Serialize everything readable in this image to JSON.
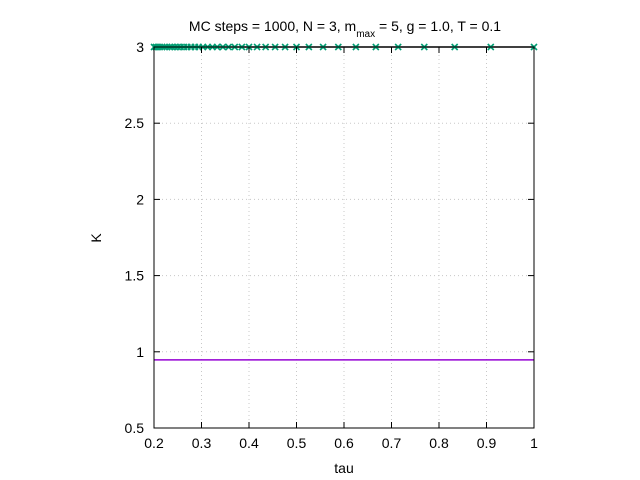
{
  "chart_data": {
    "type": "scatter",
    "title": {
      "prefix": "MC steps = 1000, N = 3, m",
      "subscript": "max",
      "suffix": " = 5, g = 1.0, T = 0.1"
    },
    "xlabel": "tau",
    "ylabel": "K",
    "xlim": [
      0.2,
      1.0
    ],
    "ylim": [
      0.5,
      3.0
    ],
    "xticks": [
      "0.2",
      "0.3",
      "0.4",
      "0.5",
      "0.6",
      "0.7",
      "0.8",
      "0.9",
      "1"
    ],
    "yticks": [
      "0.5",
      "1",
      "1.5",
      "2",
      "2.5",
      "3"
    ],
    "grid": true,
    "series": [
      {
        "kind": "line",
        "color": "#9400d3",
        "x": [
          0.2,
          1.0
        ],
        "y": [
          0.947,
          0.947
        ]
      },
      {
        "kind": "line",
        "color": "#000000",
        "x": [
          0.2,
          1.0
        ],
        "y": [
          3.0,
          3.0
        ]
      },
      {
        "kind": "points",
        "marker": "x",
        "color": "#009e73",
        "x": [
          0.2,
          0.204,
          0.208,
          0.212,
          0.217,
          0.222,
          0.227,
          0.233,
          0.238,
          0.244,
          0.25,
          0.256,
          0.263,
          0.27,
          0.278,
          0.286,
          0.294,
          0.303,
          0.313,
          0.323,
          0.333,
          0.345,
          0.357,
          0.37,
          0.385,
          0.4,
          0.417,
          0.435,
          0.455,
          0.476,
          0.5,
          0.526,
          0.556,
          0.588,
          0.625,
          0.667,
          0.714,
          0.769,
          0.833,
          0.909,
          1.0
        ],
        "y": [
          3,
          3,
          3,
          3,
          3,
          3,
          3,
          3,
          3,
          3,
          3,
          3,
          3,
          3,
          3,
          3,
          3,
          3,
          3,
          3,
          3,
          3,
          3,
          3,
          3,
          3,
          3,
          3,
          3,
          3,
          3,
          3,
          3,
          3,
          3,
          3,
          3,
          3,
          3,
          3,
          3
        ]
      }
    ]
  }
}
